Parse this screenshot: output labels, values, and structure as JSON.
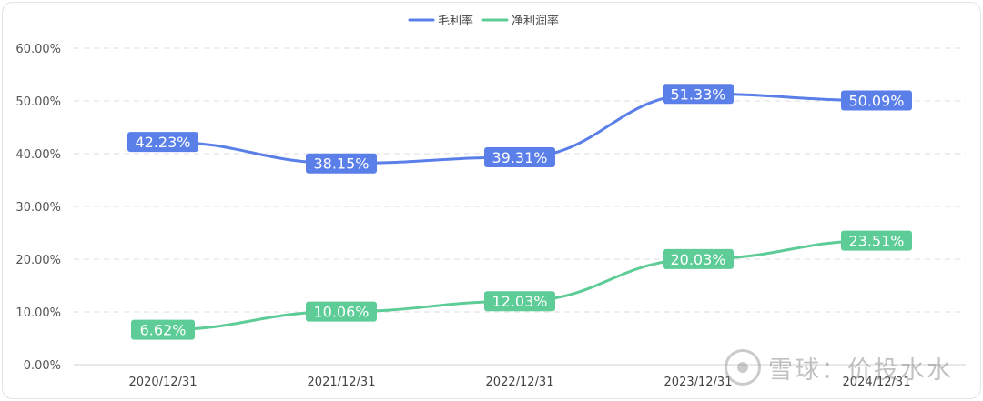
{
  "chart_data": {
    "type": "line",
    "categories": [
      "2020/12/31",
      "2021/12/31",
      "2022/12/31",
      "2023/12/31",
      "2024/12/31"
    ],
    "ylim": [
      0,
      60
    ],
    "yticks": [
      "0.00%",
      "10.00%",
      "20.00%",
      "30.00%",
      "40.00%",
      "50.00%",
      "60.00%"
    ],
    "grid": true,
    "legend_position": "top-center",
    "series": [
      {
        "name": "毛利率",
        "color": "#5b7fe8",
        "values": [
          42.23,
          38.15,
          39.31,
          51.33,
          50.09
        ],
        "labels": [
          "42.23%",
          "38.15%",
          "39.31%",
          "51.33%",
          "50.09%"
        ]
      },
      {
        "name": "净利润率",
        "color": "#5dcc97",
        "values": [
          6.62,
          10.06,
          12.03,
          20.03,
          23.51
        ],
        "labels": [
          "6.62%",
          "10.06%",
          "12.03%",
          "20.03%",
          "23.51%"
        ]
      }
    ]
  },
  "watermark": "雪球：价投水水"
}
